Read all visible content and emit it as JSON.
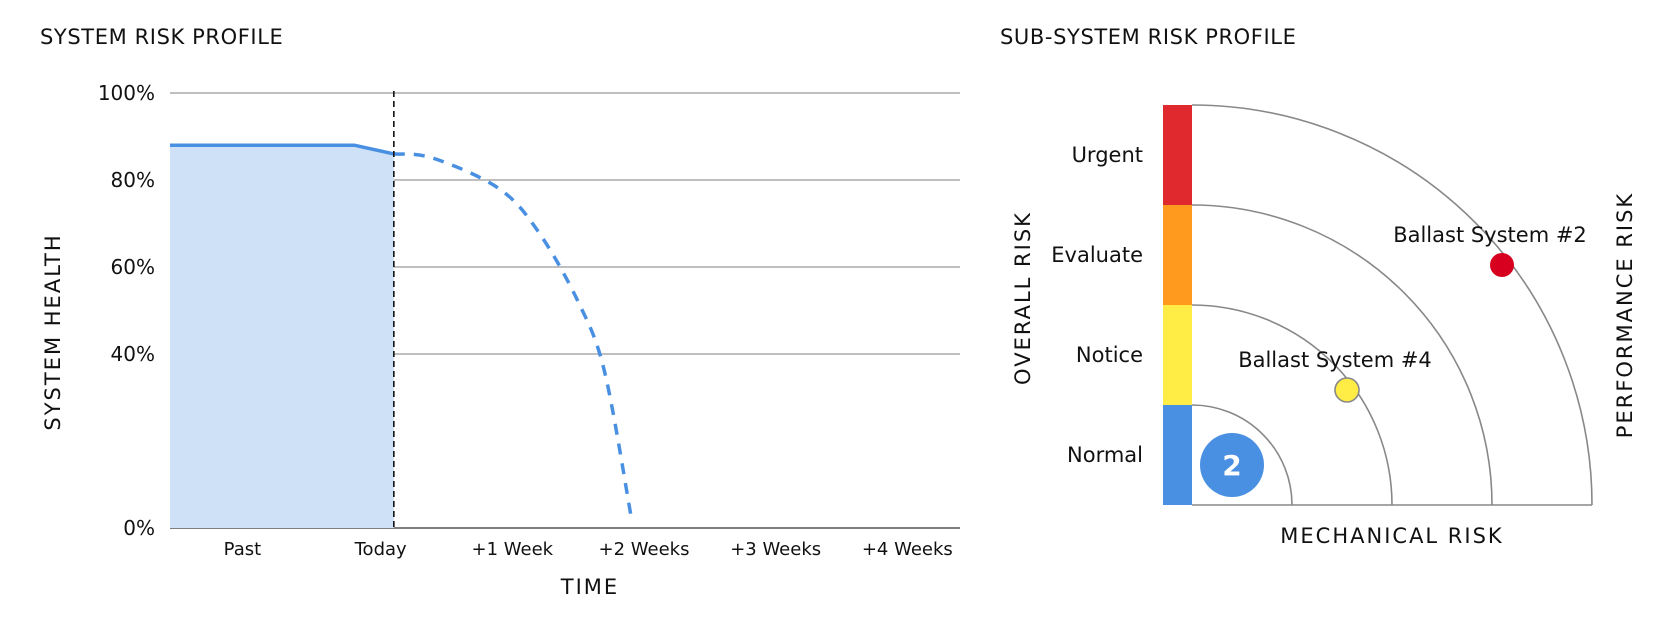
{
  "chart_data": [
    {
      "type": "line",
      "title": "SYSTEM RISK PROFILE",
      "xlabel": "TIME",
      "ylabel": "SYSTEM HEALTH",
      "categories": [
        "Past",
        "Today",
        "+1 Week",
        "+2 Weeks",
        "+3 Weeks",
        "+4 Weeks"
      ],
      "ytick_labels": [
        "0%",
        "40%",
        "60%",
        "80%",
        "100%"
      ],
      "ytick_values": [
        0,
        40,
        60,
        80,
        100
      ],
      "ylim": [
        0,
        100
      ],
      "xlim": [
        0,
        6
      ],
      "grid": true,
      "today_x": 1.7,
      "series": [
        {
          "style": "solid-filled",
          "x": [
            0,
            1.4,
            1.7
          ],
          "y": [
            88,
            88,
            86
          ]
        },
        {
          "style": "dashed",
          "x": [
            1.7,
            2.0,
            2.5,
            2.8,
            3.1,
            3.3,
            3.5
          ],
          "y": [
            86,
            85,
            78,
            68,
            52,
            36,
            3
          ]
        }
      ]
    },
    {
      "type": "scatter",
      "title": "SUB-SYSTEM RISK PROFILE",
      "xlabel": "MECHANICAL RISK",
      "ylabel": "OVERALL RISK",
      "y2label": "PERFORMANCE RISK",
      "levels": [
        {
          "name": "Normal",
          "color": "#4a90e2"
        },
        {
          "name": "Notice",
          "color": "#ffec45"
        },
        {
          "name": "Evaluate",
          "color": "#ff9a1f"
        },
        {
          "name": "Urgent",
          "color": "#e0282f"
        }
      ],
      "points": [
        {
          "name": "Ballast System #2",
          "x": 3.1,
          "y": 2.4,
          "color": "#d7001e"
        },
        {
          "name": "Ballast System #4",
          "x": 1.55,
          "y": 1.15,
          "color": "#ffec45"
        }
      ],
      "cluster": {
        "count": "2",
        "x": 0.4,
        "y": 0.4,
        "color": "#4a90e2"
      }
    }
  ]
}
